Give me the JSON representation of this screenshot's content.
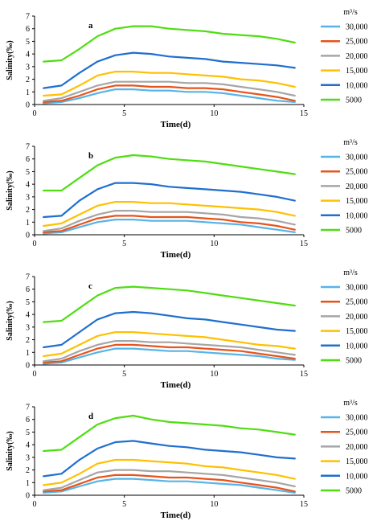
{
  "legend": {
    "unit": "m³/s",
    "entries": [
      {
        "label": "30,000",
        "color": "#56b4e9"
      },
      {
        "label": "25,000",
        "color": "#e8531a"
      },
      {
        "label": "20,000",
        "color": "#a6a6a6"
      },
      {
        "label": "15,000",
        "color": "#ffc000"
      },
      {
        "label": "10,000",
        "color": "#1f6fcf"
      },
      {
        "label": "5000",
        "color": "#4fdd12"
      }
    ]
  },
  "chart_data": [
    {
      "type": "line",
      "panel_label": "a",
      "xlabel": "Time(d)",
      "ylabel": "Salinity(‰)",
      "xlim": [
        0,
        15
      ],
      "ylim": [
        0,
        7
      ],
      "xticks": [
        0,
        5,
        10,
        15
      ],
      "yticks": [
        0,
        1,
        2,
        3,
        4,
        5,
        6,
        7
      ],
      "grid": false,
      "legend_position": "right",
      "x": [
        0.5,
        1.5,
        2.5,
        3.5,
        4.5,
        5.5,
        6.5,
        7.5,
        8.5,
        9.5,
        10.5,
        11.5,
        12.5,
        13.5,
        14.5
      ],
      "series": [
        {
          "name": "30,000",
          "values": [
            0.1,
            0.2,
            0.5,
            0.9,
            1.2,
            1.2,
            1.1,
            1.1,
            1.0,
            1.0,
            0.9,
            0.7,
            0.5,
            0.3,
            0.2
          ]
        },
        {
          "name": "25,000",
          "values": [
            0.2,
            0.3,
            0.7,
            1.2,
            1.5,
            1.5,
            1.4,
            1.4,
            1.3,
            1.3,
            1.2,
            1.0,
            0.8,
            0.6,
            0.3
          ]
        },
        {
          "name": "20,000",
          "values": [
            0.3,
            0.5,
            1.0,
            1.5,
            1.8,
            1.8,
            1.8,
            1.8,
            1.7,
            1.7,
            1.6,
            1.4,
            1.2,
            1.0,
            0.7
          ]
        },
        {
          "name": "15,000",
          "values": [
            0.7,
            0.8,
            1.5,
            2.3,
            2.6,
            2.6,
            2.5,
            2.5,
            2.4,
            2.3,
            2.2,
            2.0,
            1.9,
            1.7,
            1.4
          ]
        },
        {
          "name": "10,000",
          "values": [
            1.3,
            1.5,
            2.5,
            3.4,
            3.9,
            4.1,
            4.0,
            3.8,
            3.7,
            3.6,
            3.4,
            3.3,
            3.2,
            3.1,
            2.9
          ]
        },
        {
          "name": "5000",
          "values": [
            3.4,
            3.5,
            4.4,
            5.4,
            6.0,
            6.2,
            6.2,
            6.0,
            5.9,
            5.8,
            5.6,
            5.5,
            5.4,
            5.2,
            4.9
          ]
        }
      ]
    },
    {
      "type": "line",
      "panel_label": "b",
      "xlabel": "Time(d)",
      "ylabel": "Salinity(‰)",
      "xlim": [
        0,
        15
      ],
      "ylim": [
        0,
        7
      ],
      "xticks": [
        0,
        5,
        10,
        15
      ],
      "yticks": [
        0,
        1,
        2,
        3,
        4,
        5,
        6,
        7
      ],
      "grid": false,
      "legend_position": "right",
      "x": [
        0.5,
        1.5,
        2.5,
        3.5,
        4.5,
        5.5,
        6.5,
        7.5,
        8.5,
        9.5,
        10.5,
        11.5,
        12.5,
        13.5,
        14.5
      ],
      "series": [
        {
          "name": "30,000",
          "values": [
            0.1,
            0.2,
            0.6,
            1.0,
            1.2,
            1.2,
            1.1,
            1.1,
            1.1,
            1.0,
            0.9,
            0.8,
            0.6,
            0.4,
            0.2
          ]
        },
        {
          "name": "25,000",
          "values": [
            0.2,
            0.3,
            0.8,
            1.3,
            1.5,
            1.5,
            1.4,
            1.4,
            1.4,
            1.3,
            1.2,
            1.0,
            0.9,
            0.7,
            0.4
          ]
        },
        {
          "name": "20,000",
          "values": [
            0.3,
            0.5,
            1.1,
            1.6,
            1.9,
            1.9,
            1.8,
            1.8,
            1.8,
            1.7,
            1.6,
            1.4,
            1.3,
            1.1,
            0.8
          ]
        },
        {
          "name": "15,000",
          "values": [
            0.7,
            0.9,
            1.6,
            2.3,
            2.6,
            2.6,
            2.5,
            2.5,
            2.4,
            2.3,
            2.2,
            2.1,
            2.0,
            1.8,
            1.5
          ]
        },
        {
          "name": "10,000",
          "values": [
            1.4,
            1.5,
            2.7,
            3.6,
            4.1,
            4.1,
            4.0,
            3.8,
            3.7,
            3.6,
            3.5,
            3.4,
            3.2,
            3.0,
            2.7
          ]
        },
        {
          "name": "5000",
          "values": [
            3.5,
            3.5,
            4.5,
            5.5,
            6.1,
            6.3,
            6.2,
            6.0,
            5.9,
            5.8,
            5.6,
            5.4,
            5.2,
            5.0,
            4.8
          ]
        }
      ]
    },
    {
      "type": "line",
      "panel_label": "c",
      "xlabel": "Time(d)",
      "ylabel": "Salinity(‰)",
      "xlim": [
        0,
        15
      ],
      "ylim": [
        0,
        7
      ],
      "xticks": [
        0,
        5,
        10,
        15
      ],
      "yticks": [
        0,
        1,
        2,
        3,
        4,
        5,
        6,
        7
      ],
      "grid": false,
      "legend_position": "right",
      "x": [
        0.5,
        1.5,
        2.5,
        3.5,
        4.5,
        5.5,
        6.5,
        7.5,
        8.5,
        9.5,
        10.5,
        11.5,
        12.5,
        13.5,
        14.5
      ],
      "series": [
        {
          "name": "30,000",
          "values": [
            0.1,
            0.2,
            0.6,
            1.0,
            1.3,
            1.3,
            1.2,
            1.1,
            1.1,
            1.0,
            0.9,
            0.8,
            0.7,
            0.5,
            0.4
          ]
        },
        {
          "name": "25,000",
          "values": [
            0.2,
            0.3,
            0.8,
            1.3,
            1.6,
            1.6,
            1.5,
            1.4,
            1.4,
            1.3,
            1.2,
            1.1,
            0.9,
            0.7,
            0.5
          ]
        },
        {
          "name": "20,000",
          "values": [
            0.3,
            0.5,
            1.1,
            1.6,
            1.9,
            1.9,
            1.8,
            1.8,
            1.7,
            1.6,
            1.5,
            1.4,
            1.2,
            1.0,
            0.8
          ]
        },
        {
          "name": "15,000",
          "values": [
            0.7,
            0.9,
            1.6,
            2.3,
            2.6,
            2.6,
            2.5,
            2.4,
            2.3,
            2.2,
            2.0,
            1.8,
            1.6,
            1.5,
            1.3
          ]
        },
        {
          "name": "10,000",
          "values": [
            1.4,
            1.6,
            2.6,
            3.6,
            4.1,
            4.2,
            4.1,
            3.9,
            3.7,
            3.6,
            3.4,
            3.2,
            3.0,
            2.8,
            2.7
          ]
        },
        {
          "name": "5000",
          "values": [
            3.4,
            3.5,
            4.5,
            5.5,
            6.1,
            6.2,
            6.1,
            6.0,
            5.9,
            5.7,
            5.5,
            5.3,
            5.1,
            4.9,
            4.7
          ]
        }
      ]
    },
    {
      "type": "line",
      "panel_label": "d",
      "xlabel": "Time(d)",
      "ylabel": "Salinity(‰)",
      "xlim": [
        0,
        15
      ],
      "ylim": [
        0,
        7
      ],
      "xticks": [
        0,
        5,
        10,
        15
      ],
      "yticks": [
        0,
        1,
        2,
        3,
        4,
        5,
        6,
        7
      ],
      "grid": false,
      "legend_position": "right",
      "x": [
        0.5,
        1.5,
        2.5,
        3.5,
        4.5,
        5.5,
        6.5,
        7.5,
        8.5,
        9.5,
        10.5,
        11.5,
        12.5,
        13.5,
        14.5
      ],
      "series": [
        {
          "name": "30,000",
          "values": [
            0.2,
            0.3,
            0.7,
            1.1,
            1.3,
            1.3,
            1.2,
            1.1,
            1.1,
            1.0,
            0.9,
            0.8,
            0.6,
            0.4,
            0.2
          ]
        },
        {
          "name": "25,000",
          "values": [
            0.3,
            0.4,
            0.9,
            1.4,
            1.6,
            1.6,
            1.5,
            1.4,
            1.4,
            1.3,
            1.2,
            1.0,
            0.8,
            0.6,
            0.3
          ]
        },
        {
          "name": "20,000",
          "values": [
            0.4,
            0.6,
            1.2,
            1.8,
            2.0,
            2.0,
            1.9,
            1.9,
            1.8,
            1.7,
            1.6,
            1.4,
            1.2,
            1.0,
            0.7
          ]
        },
        {
          "name": "15,000",
          "values": [
            0.8,
            1.0,
            1.7,
            2.5,
            2.8,
            2.8,
            2.7,
            2.6,
            2.5,
            2.3,
            2.2,
            2.0,
            1.8,
            1.6,
            1.3
          ]
        },
        {
          "name": "10,000",
          "values": [
            1.5,
            1.7,
            2.8,
            3.7,
            4.2,
            4.3,
            4.1,
            3.9,
            3.8,
            3.6,
            3.5,
            3.4,
            3.2,
            3.0,
            2.9
          ]
        },
        {
          "name": "5000",
          "values": [
            3.5,
            3.6,
            4.6,
            5.6,
            6.1,
            6.3,
            6.0,
            5.8,
            5.7,
            5.6,
            5.5,
            5.3,
            5.2,
            5.0,
            4.8
          ]
        }
      ]
    }
  ]
}
